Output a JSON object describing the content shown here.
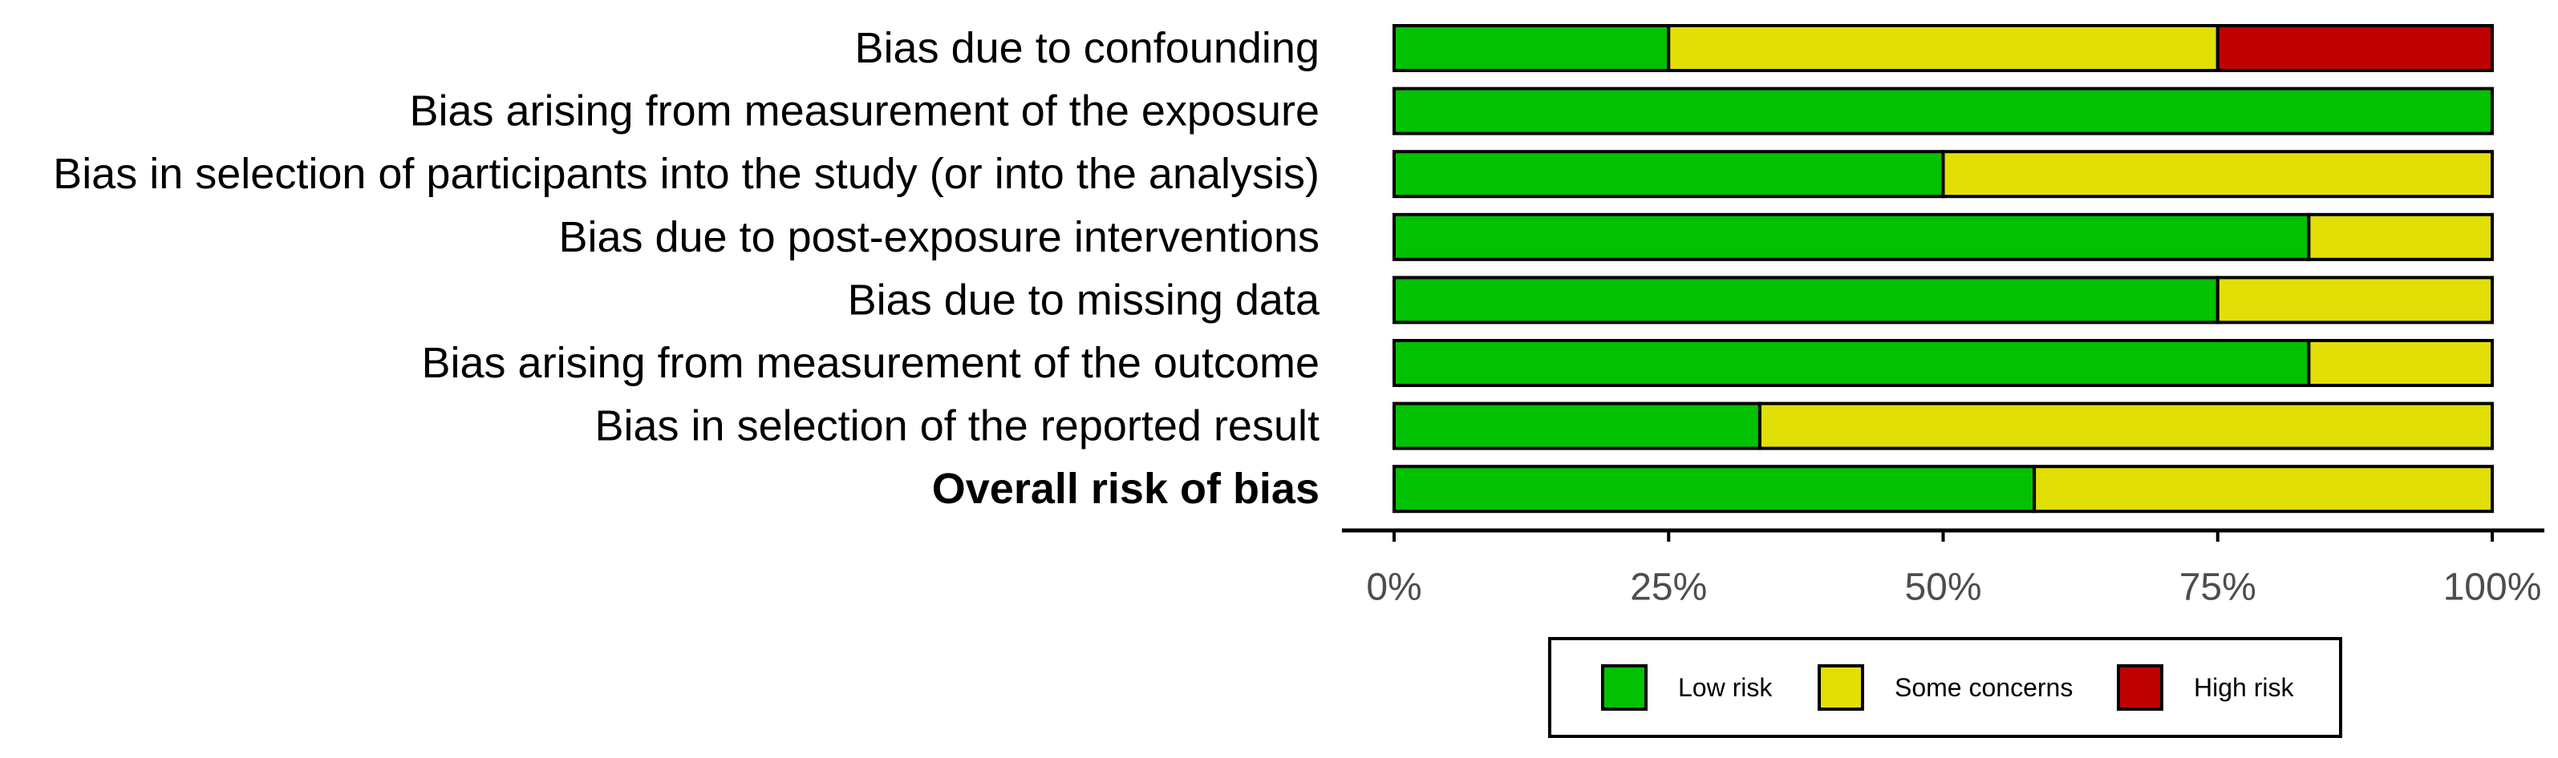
{
  "chart_data": {
    "type": "bar",
    "orientation": "horizontal",
    "stacked": true,
    "categories": [
      "Bias due to confounding",
      "Bias arising from measurement of the exposure",
      "Bias in selection of participants into the study (or into the analysis)",
      "Bias due to post-exposure interventions",
      "Bias due to missing data",
      "Bias arising from measurement of the outcome",
      "Bias in selection of the reported result",
      "Overall risk of bias"
    ],
    "bold_categories": [
      "Overall risk of bias"
    ],
    "series": [
      {
        "name": "Low risk",
        "color": "#02C100",
        "values": [
          25,
          100,
          50,
          83.3,
          75,
          83.3,
          33.3,
          58.3
        ]
      },
      {
        "name": "Some concerns",
        "color": "#E2DF07",
        "values": [
          50,
          0,
          50,
          16.7,
          25,
          16.7,
          66.7,
          41.7
        ]
      },
      {
        "name": "High risk",
        "color": "#BF0000",
        "values": [
          25,
          0,
          0,
          0,
          0,
          0,
          0,
          0
        ]
      }
    ],
    "x_ticks": [
      0,
      25,
      50,
      75,
      100
    ],
    "x_tick_labels": [
      "0%",
      "25%",
      "50%",
      "75%",
      "100%"
    ],
    "xlim": [
      0,
      100
    ],
    "grid": false,
    "legend_position": "bottom",
    "legend_labels": [
      "Low risk",
      "Some concerns",
      "High risk"
    ]
  }
}
